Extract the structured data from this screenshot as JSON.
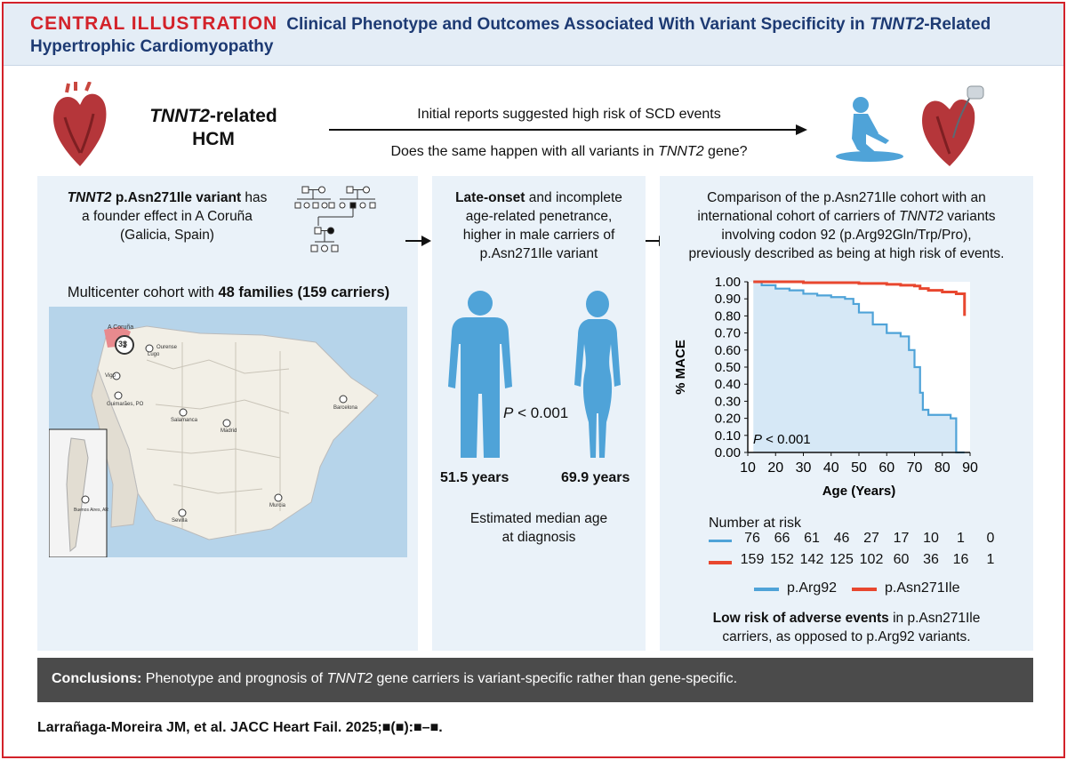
{
  "header": {
    "central": "CENTRAL ILLUSTRATION",
    "title_pre": "Clinical Phenotype and Outcomes Associated With Variant Specificity in ",
    "title_gene": "TNNT2",
    "title_post": "-Related",
    "title_line2": "Hypertrophic Cardiomyopathy"
  },
  "top": {
    "gene": "TNNT2",
    "related": "-related",
    "hcm": "HCM",
    "line1": "Initial reports suggested high risk of SCD events",
    "line2_pre": "Does the same happen with all variants in ",
    "line2_gene": "TNNT2",
    "line2_post": " gene?",
    "colors": {
      "icon": "#4fa3d8",
      "heart": "#b5363a"
    }
  },
  "left": {
    "gene": "TNNT2",
    "variant": " p.Asn271Ile variant",
    "has": " has",
    "line2": "a founder effect in A Coruña",
    "line3": "(Galicia, Spain)",
    "cohort_pre": "Multicenter cohort with ",
    "cohort_bold": "48 families (159 carriers)",
    "map_labels": {
      "coruna": "A Coruña",
      "coruna_count": "33",
      "lugo": "Lugo",
      "ourense": "Ourense",
      "vigo": "Vigo",
      "guimaraes": "Guimarães, PO",
      "salamanca": "Salamanca",
      "madrid": "Madrid",
      "barcelona": "Barcelona",
      "sevilla": "Sevilla",
      "murcia": "Murcia",
      "buenos_aires": "Buenos Aires, AR"
    }
  },
  "middle": {
    "late_onset": "Late-onset",
    "line1_rest": " and incomplete",
    "line2": "age-related penetrance,",
    "line3": "higher in male carriers of",
    "line4": "p.Asn271Ile variant",
    "p_label": "P",
    "p_rest": " < 0.001",
    "male_age": "51.5 years",
    "female_age": "69.9 years",
    "est1": "Estimated median age",
    "est2": "at diagnosis"
  },
  "right": {
    "comp1": "Comparison of the p.Asn271Ile cohort with an",
    "comp2_pre": "international cohort of carriers of ",
    "comp2_gene": "TNNT2",
    "comp2_post": " variants",
    "comp3": "involving codon 92 (p.Arg92Gln/Trp/Pro),",
    "comp4": "previously described as being at high risk of events.",
    "nar_title": "Number at risk",
    "nar_arg92": [
      "76",
      "66",
      "61",
      "46",
      "27",
      "17",
      "10",
      "1",
      "0"
    ],
    "nar_asn271": [
      "159",
      "152",
      "142",
      "125",
      "102",
      "60",
      "36",
      "16",
      "1"
    ],
    "low_risk_bold": "Low risk of adverse events",
    "low_risk_rest": " in p.Asn271Ile",
    "low_risk_line2": "carriers, as opposed to p.Arg92 variants."
  },
  "chart_data": {
    "type": "line",
    "title": "",
    "xlabel": "Age (Years)",
    "ylabel": "% MACE",
    "xlim": [
      10,
      90
    ],
    "ylim": [
      0,
      1
    ],
    "x_ticks": [
      "10",
      "20",
      "30",
      "40",
      "50",
      "60",
      "70",
      "80",
      "90"
    ],
    "y_ticks": [
      "0.00",
      "0.10",
      "0.20",
      "0.30",
      "0.40",
      "0.50",
      "0.60",
      "0.70",
      "0.80",
      "0.90",
      "1.00"
    ],
    "annotation_p": "P",
    "annotation_rest": " < 0.001",
    "series": [
      {
        "name": "p.Arg92",
        "color": "#4fa3d8",
        "x": [
          12,
          15,
          20,
          25,
          30,
          35,
          40,
          45,
          48,
          50,
          55,
          60,
          65,
          68,
          70,
          72,
          73,
          75,
          80,
          83,
          85,
          88
        ],
        "y": [
          1.0,
          0.98,
          0.96,
          0.95,
          0.93,
          0.92,
          0.91,
          0.9,
          0.87,
          0.82,
          0.75,
          0.7,
          0.68,
          0.6,
          0.5,
          0.35,
          0.25,
          0.22,
          0.22,
          0.2,
          0.0,
          0.0
        ]
      },
      {
        "name": "p.Asn271Ile",
        "color": "#e8472f",
        "x": [
          12,
          30,
          50,
          60,
          65,
          70,
          72,
          75,
          80,
          85,
          88
        ],
        "y": [
          1.0,
          0.995,
          0.99,
          0.985,
          0.98,
          0.975,
          0.96,
          0.95,
          0.94,
          0.93,
          0.8
        ]
      }
    ],
    "legend": "bottom"
  },
  "conclusion": {
    "label": "Conclusions:",
    "text_pre": " Phenotype and prognosis of ",
    "gene": "TNNT2",
    "text_post": " gene carriers is variant-specific rather than gene-specific."
  },
  "citation": "Larrañaga-Moreira JM, et al. JACC Heart Fail. 2025;■(■):■–■."
}
